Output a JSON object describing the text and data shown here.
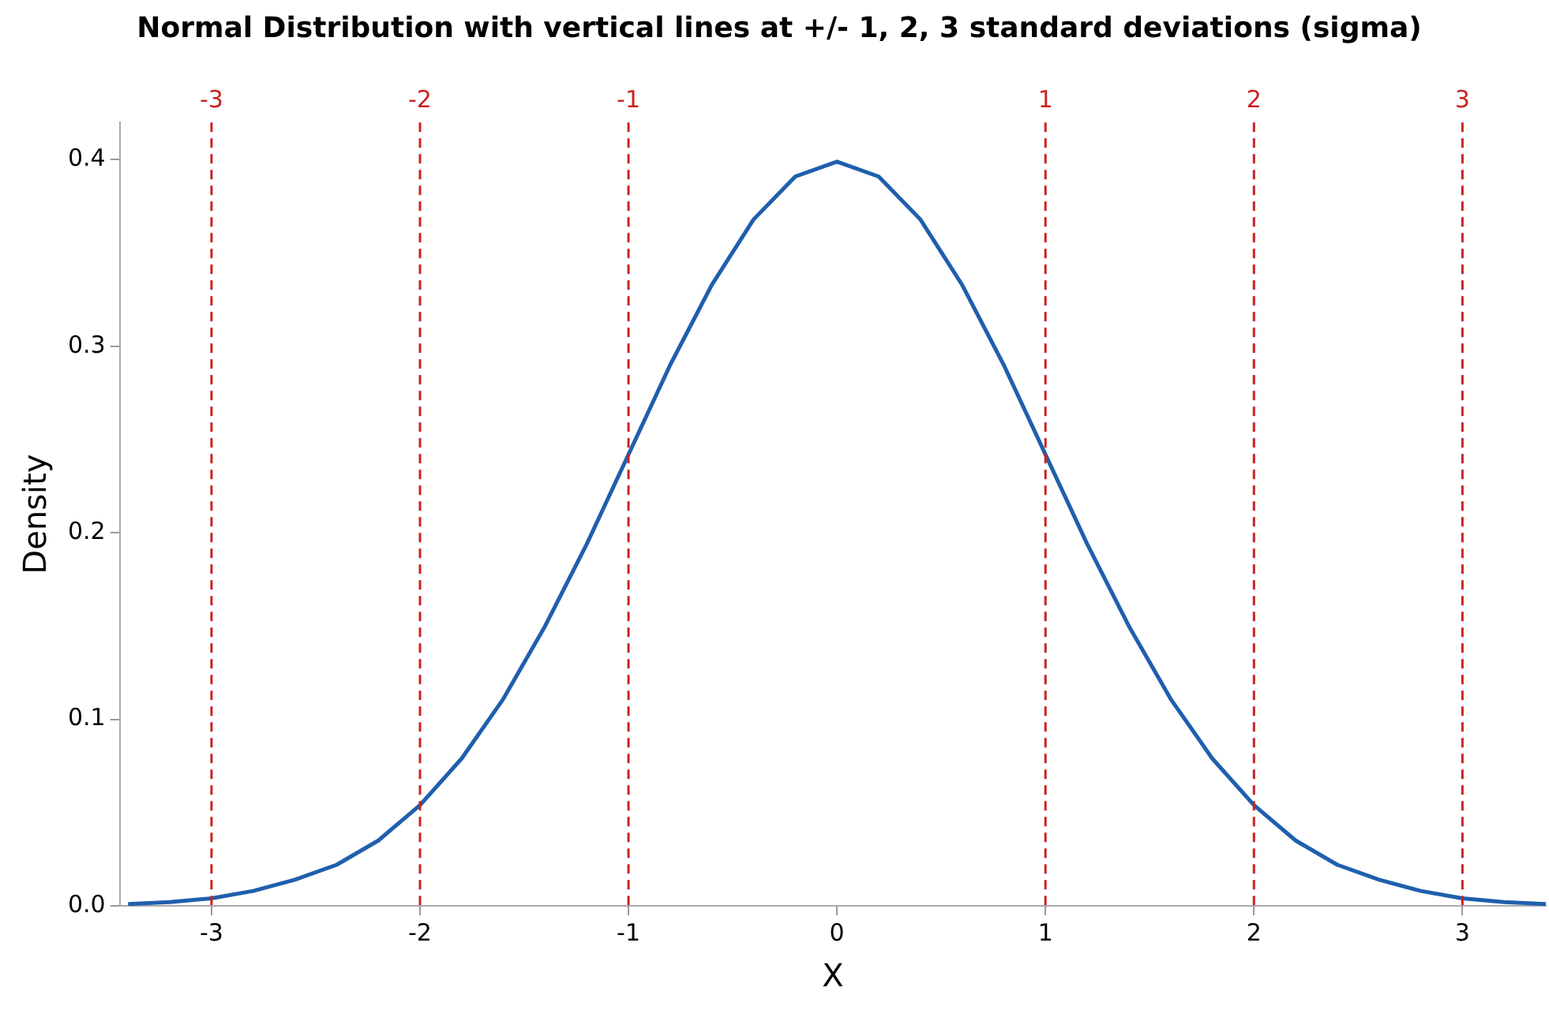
{
  "chart_data": {
    "type": "line",
    "title": "Normal Distribution with vertical lines at +/- 1, 2, 3 standard deviations (sigma)",
    "xlabel": "X",
    "ylabel": "Density",
    "x": [
      -3.4,
      -3.2,
      -3.0,
      -2.8,
      -2.6,
      -2.4,
      -2.2,
      -2.0,
      -1.8,
      -1.6,
      -1.4,
      -1.2,
      -1.0,
      -0.8,
      -0.6,
      -0.4,
      -0.2,
      0,
      0.2,
      0.4,
      0.6,
      0.8,
      1.0,
      1.2,
      1.4,
      1.6,
      1.8,
      2.0,
      2.2,
      2.4,
      2.6,
      2.8,
      3.0,
      3.2,
      3.4
    ],
    "series": [
      {
        "color": "#1f5fad",
        "values": [
          0.001,
          0.002,
          0.004,
          0.008,
          0.014,
          0.022,
          0.035,
          0.054,
          0.079,
          0.111,
          0.15,
          0.194,
          0.242,
          0.29,
          0.333,
          0.368,
          0.391,
          0.399,
          0.391,
          0.368,
          0.333,
          0.29,
          0.242,
          0.194,
          0.15,
          0.111,
          0.079,
          0.054,
          0.035,
          0.022,
          0.014,
          0.008,
          0.004,
          0.002,
          0.001
        ]
      }
    ],
    "xlim": [
      -3.44,
      3.4
    ],
    "xticks": [
      -3,
      -2,
      -1,
      0,
      1,
      2,
      3
    ],
    "ylim": [
      0,
      0.42
    ],
    "yticks": [
      {
        "value": 0,
        "label": "0.0"
      },
      0.1,
      0.2,
      0.3,
      0.4
    ],
    "ref_lines": [
      {
        "axis": "x",
        "value": -3,
        "label": "-3",
        "color": "#cc2222",
        "line_style": "dashed"
      },
      {
        "axis": "x",
        "value": -2,
        "label": "-2",
        "color": "#cc2222",
        "line_style": "dashed"
      },
      {
        "axis": "x",
        "value": -1,
        "label": "-1",
        "color": "#cc2222",
        "line_style": "dashed"
      },
      {
        "axis": "x",
        "value": 1,
        "label": "1",
        "color": "#cc2222",
        "line_style": "dashed"
      },
      {
        "axis": "x",
        "value": 2,
        "label": "2",
        "color": "#cc2222",
        "line_style": "dashed"
      },
      {
        "axis": "x",
        "value": 3,
        "label": "3",
        "color": "#cc2222",
        "line_style": "dashed"
      }
    ],
    "grid": false,
    "legend": false,
    "marker": "none",
    "line_style": "solid"
  }
}
